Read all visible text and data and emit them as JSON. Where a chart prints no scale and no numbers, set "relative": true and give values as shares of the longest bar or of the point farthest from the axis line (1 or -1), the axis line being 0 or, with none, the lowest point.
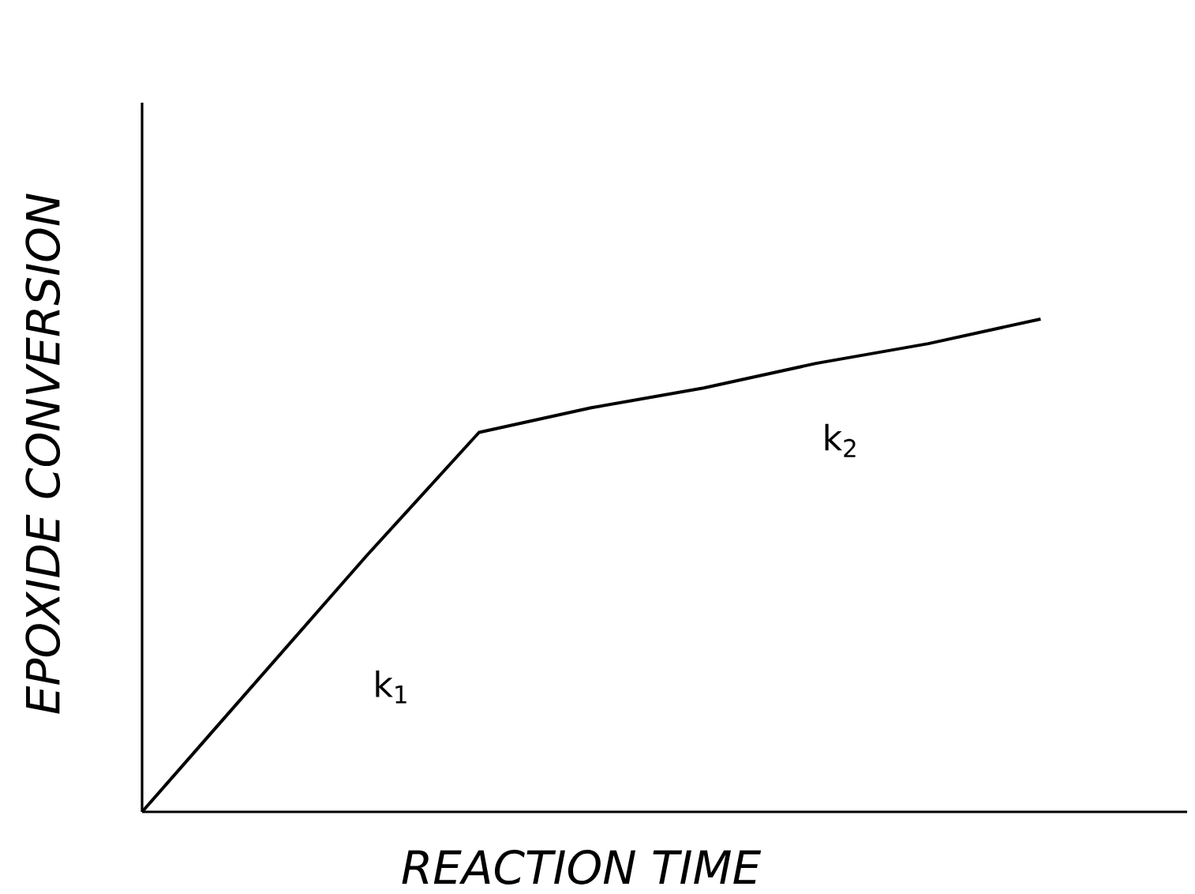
{
  "chart_data": {
    "type": "line",
    "relative": true,
    "xlabel": "REACTION TIME",
    "ylabel": "EPOXIDE CONVERSION",
    "categories": [
      null,
      null,
      null,
      null,
      null,
      null,
      null,
      null,
      null
    ],
    "series": [
      {
        "color": "#000000",
        "line_style": "solid",
        "values": [
          0,
          0.26,
          0.52,
          0.77,
          0.82,
          0.86,
          0.91,
          0.95,
          1
        ]
      }
    ],
    "annotations": [
      "k$_{1}$",
      "k$_{2}$"
    ]
  }
}
